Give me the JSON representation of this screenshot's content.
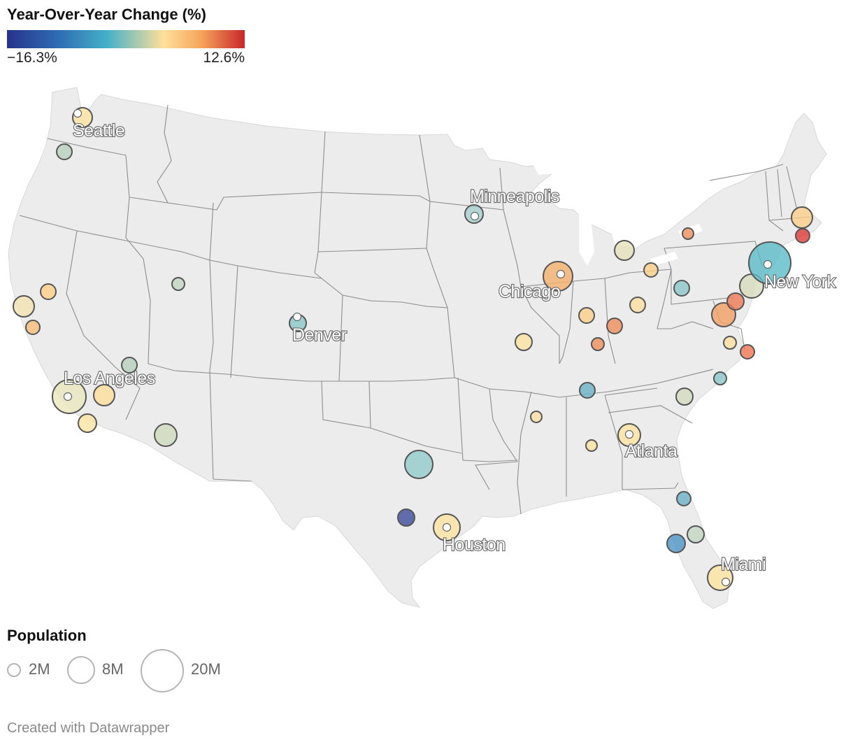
{
  "color_legend": {
    "title": "Year-Over-Year Change (%)",
    "min_label": "−16.3%",
    "max_label": "12.6%",
    "min_value": -16.3,
    "max_value": 12.6
  },
  "size_legend": {
    "title": "Population",
    "items": [
      {
        "label": "2M",
        "value": 2
      },
      {
        "label": "8M",
        "value": 8
      },
      {
        "label": "20M",
        "value": 20
      }
    ]
  },
  "city_labels": [
    "Seattle",
    "Minneapolis",
    "Chicago",
    "New York",
    "Denver",
    "Los Angeles",
    "Atlanta",
    "Houston",
    "Miami"
  ],
  "credit": "Created with Datawrapper",
  "colors": {
    "land": "#ececec",
    "borders": "#8d8d8d",
    "bubble_stroke": "#555555"
  }
}
